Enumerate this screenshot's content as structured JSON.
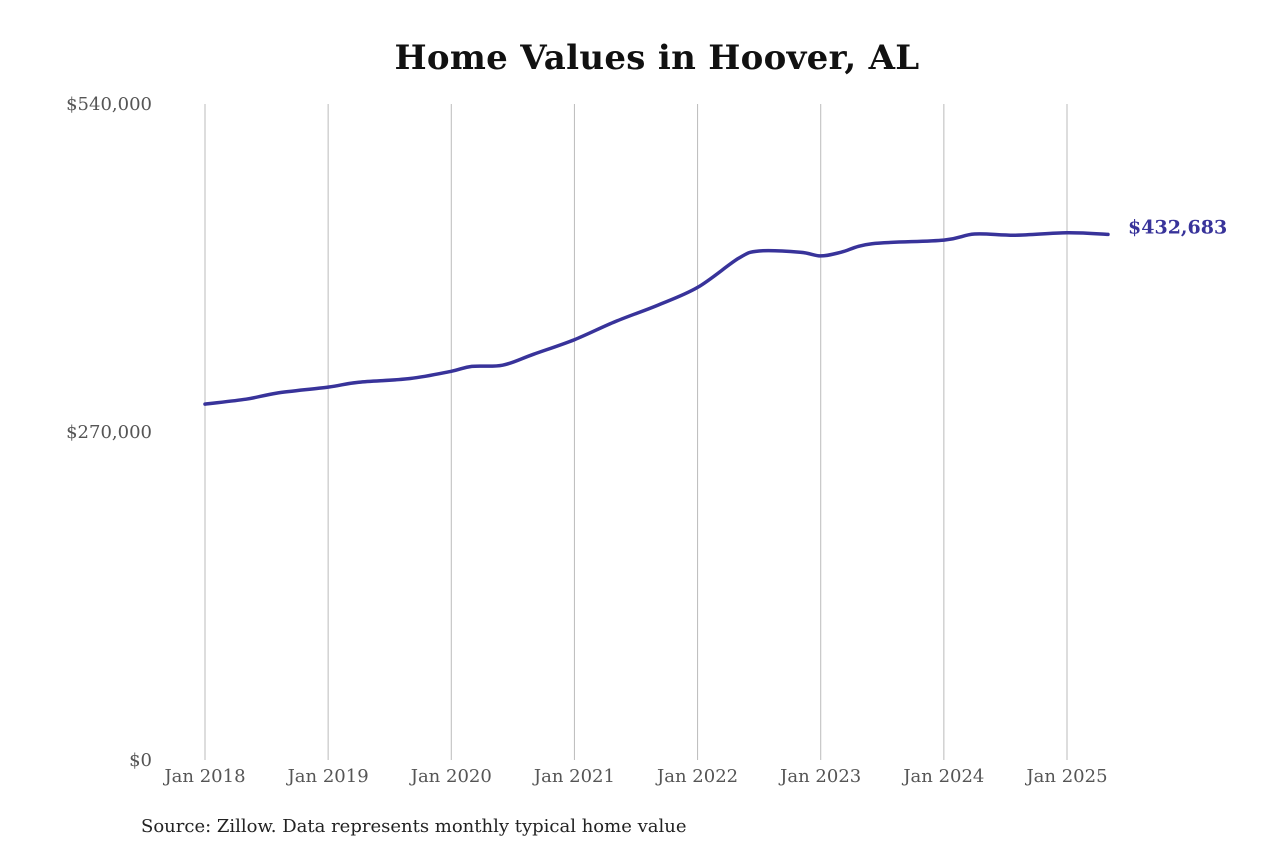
{
  "chart_data": {
    "type": "line",
    "title": "Home Values in Hoover, AL",
    "source_note": "Source: Zillow. Data represents monthly typical home value",
    "xlabel": "",
    "ylabel": "",
    "ylim": [
      0,
      540000
    ],
    "y_ticks": [
      {
        "value": 0,
        "label": "$0"
      },
      {
        "value": 270000,
        "label": "$270,000"
      },
      {
        "value": 540000,
        "label": "$540,000"
      }
    ],
    "x_ticks": [
      {
        "value": "2018-01",
        "label": "Jan 2018"
      },
      {
        "value": "2019-01",
        "label": "Jan 2019"
      },
      {
        "value": "2020-01",
        "label": "Jan 2020"
      },
      {
        "value": "2021-01",
        "label": "Jan 2021"
      },
      {
        "value": "2022-01",
        "label": "Jan 2022"
      },
      {
        "value": "2023-01",
        "label": "Jan 2023"
      },
      {
        "value": "2024-01",
        "label": "Jan 2024"
      },
      {
        "value": "2025-01",
        "label": "Jan 2025"
      }
    ],
    "grid": {
      "vertical": true,
      "horizontal": false
    },
    "colors": {
      "line": "#38339a",
      "grid": "#bbbbbb",
      "axis_text": "#555555"
    },
    "end_label": "$432,683",
    "series": [
      {
        "points": [
          {
            "x": "2018-01",
            "y": 293000
          },
          {
            "x": "2018-05",
            "y": 297000
          },
          {
            "x": "2018-08",
            "y": 302000
          },
          {
            "x": "2019-01",
            "y": 307000
          },
          {
            "x": "2019-04",
            "y": 311000
          },
          {
            "x": "2019-09",
            "y": 314000
          },
          {
            "x": "2020-01",
            "y": 320000
          },
          {
            "x": "2020-03",
            "y": 324000
          },
          {
            "x": "2020-06",
            "y": 325000
          },
          {
            "x": "2020-09",
            "y": 334000
          },
          {
            "x": "2021-01",
            "y": 346000
          },
          {
            "x": "2021-05",
            "y": 361000
          },
          {
            "x": "2021-09",
            "y": 374000
          },
          {
            "x": "2022-01",
            "y": 389000
          },
          {
            "x": "2022-05",
            "y": 413000
          },
          {
            "x": "2022-07",
            "y": 419000
          },
          {
            "x": "2022-11",
            "y": 418000
          },
          {
            "x": "2023-01",
            "y": 415000
          },
          {
            "x": "2023-03",
            "y": 418000
          },
          {
            "x": "2023-06",
            "y": 425000
          },
          {
            "x": "2024-01",
            "y": 428000
          },
          {
            "x": "2024-04",
            "y": 433000
          },
          {
            "x": "2024-08",
            "y": 432000
          },
          {
            "x": "2025-01",
            "y": 434000
          },
          {
            "x": "2025-05",
            "y": 432683
          }
        ]
      }
    ]
  }
}
